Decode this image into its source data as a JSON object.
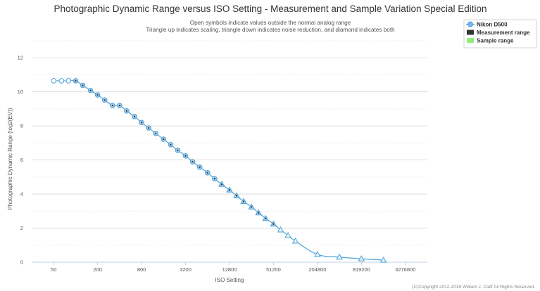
{
  "chart_data": {
    "type": "line",
    "title": "Photographic Dynamic Range versus ISO Setting - Measurement and Sample Variation Special Edition",
    "subtitle_lines": [
      "Open symbols indicate values outside the normal analog range",
      "Triangle up indicates scaling, triangle down indicates noise reduction, and diamond indicates both"
    ],
    "xlabel": "ISO Setting",
    "ylabel": "Photographic Dynamic Range (log2(EV))",
    "x_scale": "log2",
    "x_ticks": [
      "50",
      "200",
      "800",
      "3200",
      "12800",
      "51200",
      "204800",
      "819200",
      "3276800"
    ],
    "y_ticks": [
      "0",
      "2",
      "4",
      "6",
      "8",
      "10",
      "12"
    ],
    "ylim": [
      0,
      13
    ],
    "grid": true,
    "legend": {
      "position": "top-right",
      "items": [
        {
          "label": "Nikon D500",
          "color": "#7cb5ec"
        },
        {
          "label": "Measurement range",
          "color": "#333333"
        },
        {
          "label": "Sample range",
          "color": "#90ed7d"
        }
      ]
    },
    "series": [
      {
        "name": "Nikon D500",
        "color": "#4da3d9",
        "points": [
          {
            "iso": 50,
            "dr": 10.65,
            "marker": "circle-open"
          },
          {
            "iso": 64,
            "dr": 10.65,
            "marker": "circle-open"
          },
          {
            "iso": 80,
            "dr": 10.65,
            "marker": "circle-open"
          },
          {
            "iso": 100,
            "dr": 10.65,
            "marker": "circle"
          },
          {
            "iso": 125,
            "dr": 10.38,
            "marker": "circle"
          },
          {
            "iso": 160,
            "dr": 10.08,
            "marker": "circle"
          },
          {
            "iso": 200,
            "dr": 9.82,
            "marker": "circle"
          },
          {
            "iso": 250,
            "dr": 9.52,
            "marker": "circle"
          },
          {
            "iso": 320,
            "dr": 9.2,
            "marker": "circle"
          },
          {
            "iso": 400,
            "dr": 9.2,
            "marker": "circle"
          },
          {
            "iso": 500,
            "dr": 8.88,
            "marker": "circle"
          },
          {
            "iso": 640,
            "dr": 8.55,
            "marker": "circle"
          },
          {
            "iso": 800,
            "dr": 8.2,
            "marker": "circle"
          },
          {
            "iso": 1000,
            "dr": 7.88,
            "marker": "circle"
          },
          {
            "iso": 1250,
            "dr": 7.56,
            "marker": "circle"
          },
          {
            "iso": 1600,
            "dr": 7.22,
            "marker": "circle"
          },
          {
            "iso": 2000,
            "dr": 6.9,
            "marker": "circle"
          },
          {
            "iso": 2500,
            "dr": 6.57,
            "marker": "circle"
          },
          {
            "iso": 3200,
            "dr": 6.24,
            "marker": "circle"
          },
          {
            "iso": 4000,
            "dr": 5.9,
            "marker": "circle"
          },
          {
            "iso": 5000,
            "dr": 5.58,
            "marker": "circle"
          },
          {
            "iso": 6400,
            "dr": 5.25,
            "marker": "circle"
          },
          {
            "iso": 8000,
            "dr": 4.9,
            "marker": "circle"
          },
          {
            "iso": 10000,
            "dr": 4.57,
            "marker": "triangle-up"
          },
          {
            "iso": 12800,
            "dr": 4.24,
            "marker": "triangle-up"
          },
          {
            "iso": 16000,
            "dr": 3.9,
            "marker": "triangle-up"
          },
          {
            "iso": 20000,
            "dr": 3.57,
            "marker": "triangle-up"
          },
          {
            "iso": 25600,
            "dr": 3.24,
            "marker": "triangle-up"
          },
          {
            "iso": 32000,
            "dr": 2.9,
            "marker": "triangle-up"
          },
          {
            "iso": 40000,
            "dr": 2.57,
            "marker": "triangle-up"
          },
          {
            "iso": 51200,
            "dr": 2.24,
            "marker": "triangle-up"
          },
          {
            "iso": 64000,
            "dr": 1.9,
            "marker": "triangle-up-open"
          },
          {
            "iso": 81000,
            "dr": 1.57,
            "marker": "triangle-up-open"
          },
          {
            "iso": 102400,
            "dr": 1.24,
            "marker": "triangle-up-open"
          },
          {
            "iso": 204800,
            "dr": 0.45,
            "marker": "triangle-up-open"
          },
          {
            "iso": 409600,
            "dr": 0.3,
            "marker": "triangle-up-open"
          },
          {
            "iso": 819200,
            "dr": 0.2,
            "marker": "triangle-up-open"
          },
          {
            "iso": 1638400,
            "dr": 0.12,
            "marker": "triangle-up-open"
          }
        ]
      }
    ]
  },
  "copyright": "(C)Copyright 2012-2018 William J. Claff All Rights Reserved."
}
